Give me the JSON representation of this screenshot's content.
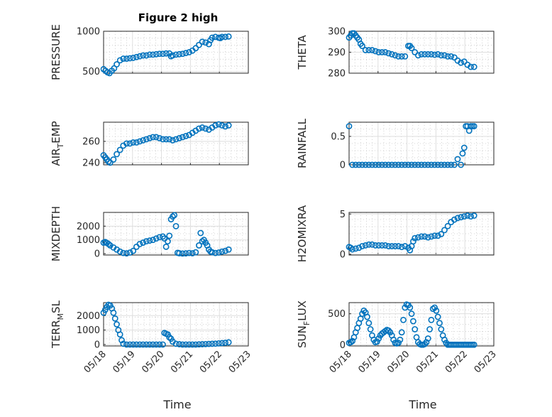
{
  "figure_title": "Figure 2 high",
  "colors": {
    "marker": "#0072BD",
    "axis": "#262626",
    "grid": "#dedede"
  },
  "chart_data": [
    {
      "type": "scatter",
      "ylabel": "PRESSURE",
      "ylim": [
        480,
        1000
      ],
      "yticks": [
        {
          "v": 500,
          "t": "500"
        },
        {
          "v": 1000,
          "t": "1000"
        }
      ],
      "xlim": [
        0,
        4.4
      ],
      "x": [
        0,
        0.06,
        0.12,
        0.18,
        0.25,
        0.32,
        0.4,
        0.5,
        0.6,
        0.7,
        0.8,
        0.9,
        1.0,
        1.1,
        1.2,
        1.3,
        1.4,
        1.5,
        1.6,
        1.7,
        1.8,
        1.9,
        2.0,
        2.05,
        2.1,
        2.2,
        2.3,
        2.4,
        2.5,
        2.6,
        2.7,
        2.8,
        2.9,
        3.0,
        3.1,
        3.2,
        3.25,
        3.3,
        3.4,
        3.5,
        3.55,
        3.6,
        3.7,
        3.8
      ],
      "y": [
        530,
        510,
        490,
        480,
        510,
        540,
        590,
        640,
        660,
        660,
        665,
        670,
        680,
        690,
        700,
        700,
        710,
        710,
        715,
        720,
        720,
        725,
        725,
        690,
        700,
        710,
        715,
        720,
        730,
        740,
        760,
        790,
        830,
        870,
        860,
        840,
        890,
        920,
        930,
        920,
        915,
        930,
        930,
        935
      ]
    },
    {
      "type": "scatter",
      "ylabel": "THETA",
      "ylim": [
        280,
        300
      ],
      "yticks": [
        {
          "v": 280,
          "t": "280"
        },
        {
          "v": 290,
          "t": "290"
        },
        {
          "v": 300,
          "t": "300"
        }
      ],
      "xlim": [
        0,
        4.4
      ],
      "x": [
        0,
        0.05,
        0.1,
        0.15,
        0.2,
        0.25,
        0.3,
        0.35,
        0.4,
        0.5,
        0.6,
        0.7,
        0.8,
        0.9,
        1.0,
        1.1,
        1.2,
        1.3,
        1.4,
        1.5,
        1.6,
        1.7,
        1.8,
        1.85,
        1.9,
        2.0,
        2.1,
        2.2,
        2.3,
        2.4,
        2.5,
        2.6,
        2.7,
        2.8,
        2.9,
        3.0,
        3.1,
        3.2,
        3.3,
        3.4,
        3.5,
        3.6,
        3.7,
        3.8
      ],
      "y": [
        297,
        298,
        299,
        299,
        298,
        297,
        296,
        294,
        293,
        291,
        291,
        291,
        290.5,
        290,
        290,
        290,
        289.5,
        289,
        288.5,
        288,
        288,
        288,
        293,
        293,
        292,
        290,
        288.5,
        289,
        289,
        289,
        289,
        288.8,
        289,
        288.5,
        288.5,
        288,
        288,
        287.5,
        286,
        285,
        285.5,
        284,
        283,
        283
      ]
    },
    {
      "type": "scatter",
      "ylabel": "AIR_TEMP",
      "ylabel_parts": [
        "AIR",
        "T",
        "EMP"
      ],
      "ylim": [
        238,
        278
      ],
      "yticks": [
        {
          "v": 240,
          "t": "240"
        },
        {
          "v": 260,
          "t": "260"
        }
      ],
      "xlim": [
        0,
        4.4
      ],
      "x": [
        0,
        0.05,
        0.1,
        0.15,
        0.2,
        0.3,
        0.4,
        0.5,
        0.6,
        0.7,
        0.8,
        0.9,
        1.0,
        1.1,
        1.2,
        1.3,
        1.4,
        1.5,
        1.6,
        1.7,
        1.8,
        1.9,
        2.0,
        2.1,
        2.2,
        2.3,
        2.4,
        2.5,
        2.6,
        2.7,
        2.8,
        2.9,
        3.0,
        3.1,
        3.2,
        3.3,
        3.4,
        3.5,
        3.6,
        3.7,
        3.8
      ],
      "y": [
        247,
        245,
        243,
        241,
        240,
        243,
        248,
        252,
        256,
        258,
        258,
        259,
        259,
        260,
        261,
        262,
        263,
        264,
        264,
        263,
        262,
        262,
        262,
        261,
        262,
        263,
        264,
        265,
        266,
        268,
        270,
        272,
        273,
        272,
        271,
        273,
        275,
        276,
        275,
        274,
        275
      ]
    },
    {
      "type": "scatter",
      "ylabel": "RAINFALL",
      "ylim": [
        0,
        0.75
      ],
      "yticks": [
        {
          "v": 0,
          "t": "0"
        },
        {
          "v": 0.5,
          "t": "0.5"
        }
      ],
      "xlim": [
        0,
        4.4
      ],
      "x": [
        0,
        0.1,
        0.2,
        0.3,
        0.4,
        0.5,
        0.6,
        0.7,
        0.8,
        0.9,
        1.0,
        1.1,
        1.2,
        1.3,
        1.4,
        1.5,
        1.6,
        1.7,
        1.8,
        1.9,
        2.0,
        2.1,
        2.2,
        2.3,
        2.4,
        2.5,
        2.6,
        2.7,
        2.8,
        2.9,
        3.0,
        3.1,
        3.2,
        3.3,
        3.4,
        3.45,
        3.5,
        3.55,
        3.6,
        3.65,
        3.7,
        3.75,
        3.8
      ],
      "y": [
        0.68,
        0,
        0,
        0,
        0,
        0,
        0,
        0,
        0,
        0,
        0,
        0,
        0,
        0,
        0,
        0,
        0,
        0,
        0,
        0,
        0,
        0,
        0,
        0,
        0,
        0,
        0,
        0,
        0,
        0,
        0,
        0,
        0,
        0.1,
        0,
        0.2,
        0.3,
        0.68,
        0.68,
        0.6,
        0.68,
        0.68,
        0.68
      ]
    },
    {
      "type": "scatter",
      "ylabel": "MIXDEPTH",
      "ylim": [
        -100,
        3000
      ],
      "yticks": [
        {
          "v": 0,
          "t": "0"
        },
        {
          "v": 1000,
          "t": "1000"
        },
        {
          "v": 2000,
          "t": "2000"
        }
      ],
      "xlim": [
        0,
        4.4
      ],
      "x": [
        0,
        0.05,
        0.1,
        0.15,
        0.2,
        0.3,
        0.4,
        0.5,
        0.6,
        0.7,
        0.8,
        0.9,
        1.0,
        1.1,
        1.2,
        1.3,
        1.4,
        1.5,
        1.6,
        1.7,
        1.8,
        1.85,
        1.9,
        1.95,
        2.0,
        2.05,
        2.1,
        2.15,
        2.2,
        2.25,
        2.3,
        2.4,
        2.5,
        2.6,
        2.7,
        2.8,
        2.9,
        2.95,
        3.0,
        3.05,
        3.1,
        3.15,
        3.2,
        3.25,
        3.3,
        3.4,
        3.5,
        3.6,
        3.7,
        3.8
      ],
      "y": [
        800,
        850,
        780,
        700,
        600,
        450,
        300,
        150,
        50,
        20,
        80,
        200,
        500,
        700,
        800,
        900,
        950,
        1000,
        1100,
        1200,
        1250,
        1100,
        500,
        900,
        1300,
        2500,
        2700,
        2800,
        2000,
        60,
        30,
        10,
        20,
        50,
        30,
        100,
        600,
        1500,
        900,
        1000,
        800,
        600,
        300,
        150,
        100,
        50,
        80,
        150,
        200,
        300
      ]
    },
    {
      "type": "scatter",
      "ylabel": "H2OMIXRA",
      "ylim": [
        -0.1,
        5.2
      ],
      "yticks": [
        {
          "v": 0,
          "t": "0"
        },
        {
          "v": 5,
          "t": "5"
        }
      ],
      "xlim": [
        0,
        4.4
      ],
      "x": [
        0,
        0.05,
        0.1,
        0.2,
        0.3,
        0.4,
        0.5,
        0.6,
        0.7,
        0.8,
        0.9,
        1.0,
        1.1,
        1.2,
        1.3,
        1.4,
        1.5,
        1.6,
        1.7,
        1.8,
        1.85,
        1.9,
        1.95,
        2.0,
        2.1,
        2.2,
        2.3,
        2.4,
        2.5,
        2.6,
        2.7,
        2.8,
        2.9,
        3.0,
        3.1,
        3.2,
        3.3,
        3.4,
        3.5,
        3.6,
        3.7,
        3.8
      ],
      "y": [
        0.9,
        0.8,
        0.6,
        0.7,
        0.8,
        1.0,
        1.1,
        1.2,
        1.2,
        1.1,
        1.1,
        1.1,
        1.1,
        1.0,
        1.0,
        1.0,
        1.0,
        0.9,
        1.0,
        0.8,
        0.5,
        1.0,
        1.6,
        2.0,
        2.1,
        2.2,
        2.2,
        2.1,
        2.2,
        2.3,
        2.3,
        2.5,
        3.0,
        3.5,
        4.0,
        4.3,
        4.5,
        4.6,
        4.7,
        4.8,
        4.7,
        4.8
      ]
    },
    {
      "type": "scatter",
      "ylabel": "TERR_MSL",
      "ylabel_parts": [
        "TERR",
        "M",
        "SL"
      ],
      "ylim": [
        -100,
        2900
      ],
      "yticks": [
        {
          "v": 0,
          "t": "0"
        },
        {
          "v": 1000,
          "t": "1000"
        },
        {
          "v": 2000,
          "t": "2000"
        }
      ],
      "xlim": [
        0,
        4.4
      ],
      "x": [
        0,
        0.05,
        0.1,
        0.15,
        0.2,
        0.25,
        0.3,
        0.35,
        0.4,
        0.45,
        0.5,
        0.55,
        0.6,
        0.7,
        0.8,
        0.9,
        1.0,
        1.1,
        1.2,
        1.3,
        1.4,
        1.5,
        1.6,
        1.7,
        1.8,
        1.85,
        1.9,
        1.95,
        2.0,
        2.05,
        2.1,
        2.2,
        2.3,
        2.4,
        2.5,
        2.6,
        2.7,
        2.8,
        2.9,
        3.0,
        3.1,
        3.2,
        3.3,
        3.4,
        3.5,
        3.6,
        3.7,
        3.8
      ],
      "y": [
        2200,
        2400,
        2600,
        2750,
        2700,
        2500,
        2200,
        1800,
        1400,
        1000,
        700,
        300,
        50,
        0,
        0,
        0,
        0,
        0,
        0,
        0,
        0,
        0,
        0,
        0,
        0,
        800,
        750,
        700,
        500,
        400,
        200,
        50,
        20,
        0,
        0,
        0,
        0,
        0,
        10,
        20,
        30,
        40,
        50,
        60,
        80,
        100,
        120,
        150
      ]
    },
    {
      "type": "scatter",
      "ylabel": "SUN_FLUX",
      "ylabel_parts": [
        "SUN",
        "F",
        "LUX"
      ],
      "ylim": [
        -20,
        680
      ],
      "yticks": [
        {
          "v": 0,
          "t": "0"
        },
        {
          "v": 500,
          "t": "500"
        }
      ],
      "xlim": [
        0,
        4.4
      ],
      "x": [
        0,
        0.05,
        0.1,
        0.15,
        0.2,
        0.25,
        0.3,
        0.35,
        0.4,
        0.45,
        0.5,
        0.55,
        0.6,
        0.65,
        0.7,
        0.75,
        0.8,
        0.85,
        0.9,
        0.95,
        1.0,
        1.05,
        1.1,
        1.15,
        1.2,
        1.25,
        1.3,
        1.35,
        1.4,
        1.45,
        1.5,
        1.55,
        1.6,
        1.65,
        1.7,
        1.75,
        1.8,
        1.85,
        1.9,
        1.95,
        2.0,
        2.05,
        2.1,
        2.15,
        2.2,
        2.25,
        2.3,
        2.35,
        2.4,
        2.45,
        2.5,
        2.55,
        2.6,
        2.65,
        2.7,
        2.75,
        2.8,
        2.85,
        2.9,
        2.95,
        3.0,
        3.05,
        3.1,
        3.15,
        3.2,
        3.25,
        3.3,
        3.35,
        3.4,
        3.45,
        3.5,
        3.55,
        3.6,
        3.65,
        3.7,
        3.75,
        3.8
      ],
      "y": [
        30,
        40,
        60,
        120,
        200,
        270,
        350,
        420,
        500,
        550,
        520,
        450,
        350,
        250,
        150,
        80,
        40,
        50,
        100,
        150,
        180,
        200,
        220,
        240,
        230,
        200,
        150,
        80,
        30,
        20,
        30,
        80,
        200,
        400,
        600,
        650,
        640,
        600,
        500,
        380,
        250,
        120,
        40,
        10,
        0,
        0,
        10,
        40,
        100,
        250,
        400,
        580,
        600,
        550,
        450,
        350,
        250,
        150,
        80,
        30,
        0,
        0,
        0,
        0,
        0,
        0,
        0,
        0,
        0,
        0,
        0,
        0,
        0,
        0,
        0,
        0,
        0
      ]
    }
  ],
  "xticks": [
    "05/18",
    "05/19",
    "05/20",
    "05/21",
    "05/22",
    "05/23"
  ],
  "xlabel": "Time"
}
